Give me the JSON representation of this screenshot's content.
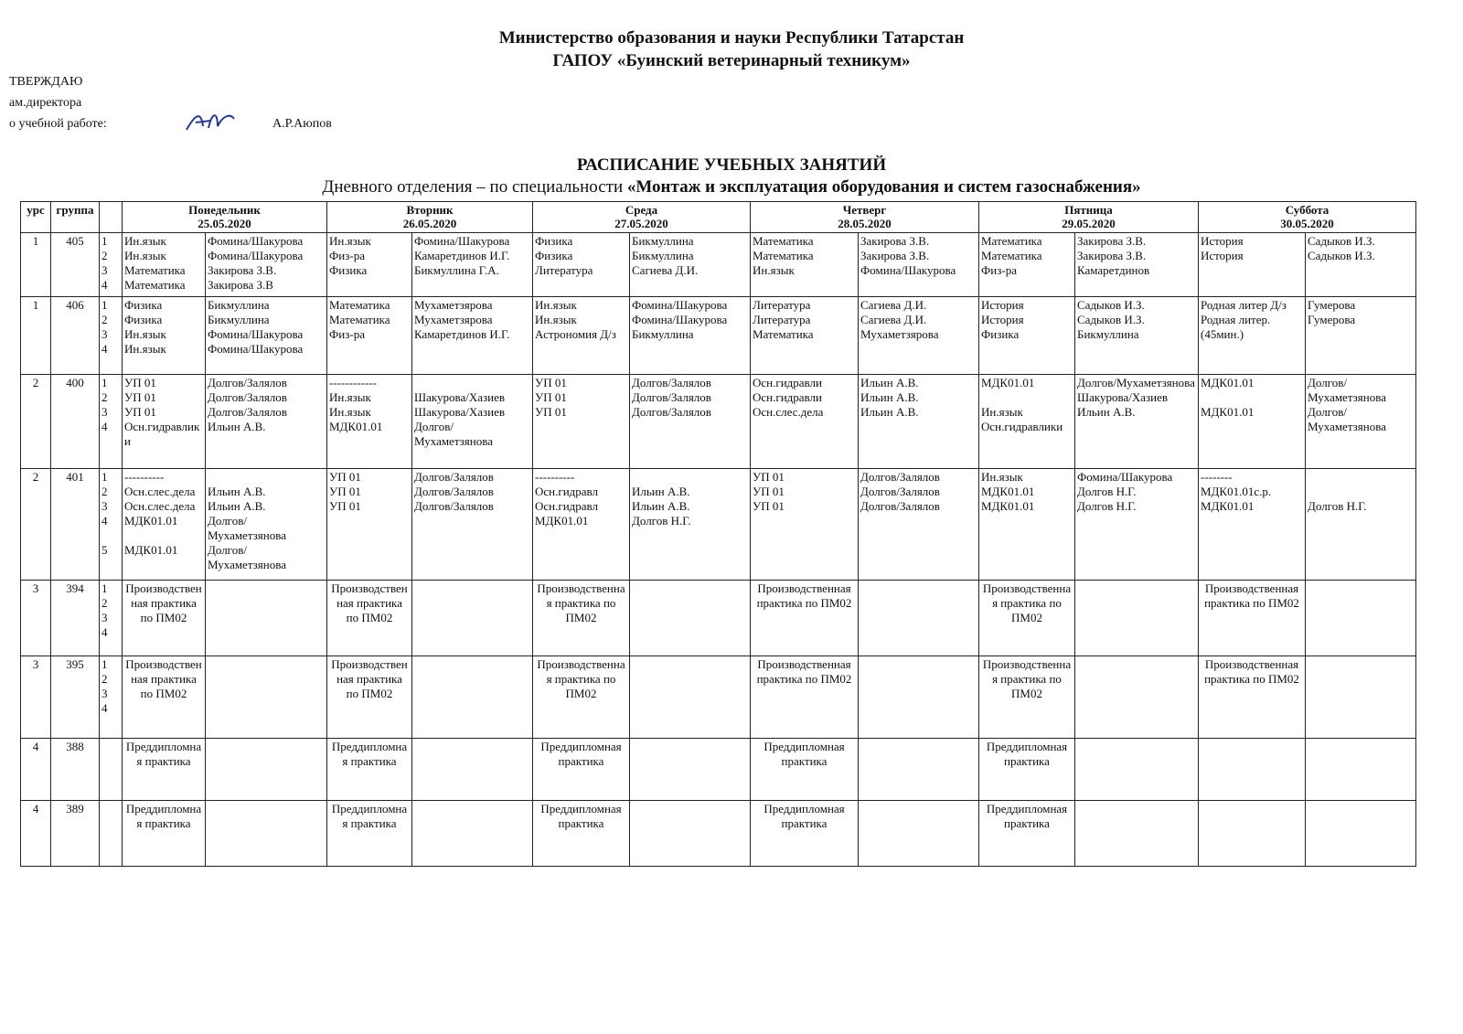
{
  "header": {
    "ministry": "Министерство образования и науки Республики Татарстан",
    "college": "ГАПОУ «Буинский ветеринарный техникум»"
  },
  "approval": {
    "title": "ТВЕРЖДАЮ",
    "position": "ам.директора",
    "area": "о учебной  работе:",
    "name": "А.Р.Аюпов"
  },
  "schedule_title": {
    "title": "РАСПИСАНИЕ УЧЕБНЫХ ЗАНЯТИЙ",
    "subtitle_prefix": "Дневного отделения – по специальности ",
    "specialty": "«Монтаж и эксплуатация оборудования и систем газоснабжения»"
  },
  "table": {
    "columns": {
      "course": "урс",
      "group": "группа"
    },
    "days": [
      {
        "name": "Понедельник",
        "date": "25.05.2020"
      },
      {
        "name": "Вторник",
        "date": "26.05.2020"
      },
      {
        "name": "Среда",
        "date": "27.05.2020"
      },
      {
        "name": "Четверг",
        "date": "28.05.2020"
      },
      {
        "name": "Пятница",
        "date": "29.05.2020"
      },
      {
        "name": "Суббота",
        "date": "30.05.2020"
      }
    ],
    "rows": [
      {
        "course": "1",
        "group": "405",
        "pairs": "1\n2\n3\n4",
        "lessons": [
          {
            "subject": "Ин.язык\nИн.язык\nМатематика\nМатематика",
            "teacher": "Фомина/Шакурова\nФомина/Шакурова\nЗакирова З.В.\nЗакирова З.В"
          },
          {
            "subject": "Ин.язык\nФиз-ра\nФизика",
            "teacher": "Фомина/Шакурова\nКамаретдинов И.Г.\nБикмуллина Г.А."
          },
          {
            "subject": "Физика\nФизика\nЛитература",
            "teacher": "Бикмуллина\nБикмуллина\nСагиева Д.И."
          },
          {
            "subject": "Математика\nМатематика\nИн.язык",
            "teacher": "Закирова З.В.\nЗакирова З.В.\nФомина/Шакурова"
          },
          {
            "subject": "Математика\nМатематика\nФиз-ра",
            "teacher": "Закирова З.В.\nЗакирова З.В.\nКамаретдинов"
          },
          {
            "subject": "История\nИстория",
            "teacher": "Садыков И.З.\nСадыков И.З."
          }
        ]
      },
      {
        "course": "1",
        "group": "406",
        "pairs": "1\n2\n3\n4",
        "lessons": [
          {
            "subject": "Физика\nФизика\nИн.язык\nИн.язык",
            "teacher": "Бикмуллина\nБикмуллина\nФомина/Шакурова\nФомина/Шакурова"
          },
          {
            "subject": "Математика\nМатематика\nФиз-ра",
            "teacher": "Мухаметзярова\nМухаметзярова\nКамаретдинов И.Г."
          },
          {
            "subject": "Ин.язык\nИн.язык\nАстрономия Д/з",
            "teacher": "Фомина/Шакурова\nФомина/Шакурова\nБикмуллина"
          },
          {
            "subject": "Литература\nЛитература\nМатематика",
            "teacher": "Сагиева Д.И.\nСагиева Д.И.\nМухаметзярова"
          },
          {
            "subject": "История\nИстория\nФизика",
            "teacher": "Садыков И.З.\nСадыков И.З.\nБикмуллина"
          },
          {
            "subject": "Родная литер  Д/з\nРодная литер.\n(45мин.)",
            "teacher": "Гумерова\nГумерова"
          }
        ]
      },
      {
        "course": "2",
        "group": "400",
        "pairs": "1\n2\n3\n4",
        "lessons": [
          {
            "subject": "УП 01\nУП 01\nУП 01\nОсн.гидравлики",
            "teacher": "Долгов/Залялов\nДолгов/Залялов\nДолгов/Залялов\nИльин А.В."
          },
          {
            "subject": "------------\nИн.язык\nИн.язык\nМДК01.01",
            "teacher": "\nШакурова/Хазиев\nШакурова/Хазиев\nДолгов/Мухаметзянова"
          },
          {
            "subject": "УП 01\nУП 01\nУП 01",
            "teacher": "Долгов/Залялов\nДолгов/Залялов\nДолгов/Залялов"
          },
          {
            "subject": "Осн.гидравли\nОсн.гидравли\nОсн.слес.дела",
            "teacher": "Ильин А.В.\nИльин А.В.\nИльин А.В."
          },
          {
            "subject": "МДК01.01\n\nИн.язык\nОсн.гидравлики",
            "teacher": "Долгов/Мухаметзянова\nШакурова/Хазиев\nИльин А.В."
          },
          {
            "subject": "МДК01.01\n\nМДК01.01",
            "teacher": "Долгов/Мухаметзянова\nДолгов/Мухаметзянова"
          }
        ]
      },
      {
        "course": "2",
        "group": "401",
        "pairs": "1\n2\n3\n4\n\n5",
        "lessons": [
          {
            "subject": "----------\nОсн.слес.дела\nОсн.слес.дела\nМДК01.01\n\nМДК01.01",
            "teacher": "\nИльин А.В.\nИльин А.В.\nДолгов/Мухаметзянова\nДолгов/Мухаметзянова"
          },
          {
            "subject": "УП 01\nУП 01\nУП 01",
            "teacher": "Долгов/Залялов\nДолгов/Залялов\nДолгов/Залялов"
          },
          {
            "subject": "----------\nОсн.гидравл\nОсн.гидравл\nМДК01.01",
            "teacher": "\nИльин А.В.\nИльин А.В.\nДолгов Н.Г."
          },
          {
            "subject": "УП 01\nУП 01\nУП 01",
            "teacher": "Долгов/Залялов\nДолгов/Залялов\nДолгов/Залялов"
          },
          {
            "subject": "Ин.язык\nМДК01.01\nМДК01.01",
            "teacher": "Фомина/Шакурова\nДолгов Н.Г.\nДолгов Н.Г."
          },
          {
            "subject": "--------\nМДК01.01с.р.\nМДК01.01",
            "teacher": "\n\nДолгов Н.Г."
          }
        ]
      },
      {
        "course": "3",
        "group": "394",
        "pairs": "1\n2\n3\n4",
        "lessons": [
          {
            "practice": "Производственная практика по ПМ02"
          },
          {
            "practice": "Производственная практика по ПМ02"
          },
          {
            "practice": "Производственная практика по ПМ02"
          },
          {
            "practice": "Производственная практика по ПМ02"
          },
          {
            "practice": "Производственная практика по ПМ02"
          },
          {
            "practice": "Производственная практика по ПМ02"
          }
        ]
      },
      {
        "course": "3",
        "group": "395",
        "pairs": "1\n2\n3\n4",
        "lessons": [
          {
            "practice": "Производственная практика по ПМ02"
          },
          {
            "practice": "Производственная практика по ПМ02"
          },
          {
            "practice": "Производственная практика по ПМ02"
          },
          {
            "practice": "Производственная практика по ПМ02"
          },
          {
            "practice": "Производственная практика по ПМ02"
          },
          {
            "practice": "Производственная практика по ПМ02"
          }
        ]
      },
      {
        "course": "4",
        "group": "388",
        "lessons": [
          {
            "practice": "Преддипломная практика"
          },
          {
            "practice": "Преддипломная практика"
          },
          {
            "practice": "Преддипломная практика"
          },
          {
            "practice": "Преддипломная практика"
          },
          {
            "practice": "Преддипломная практика"
          }
        ]
      },
      {
        "course": "4",
        "group": "389",
        "lessons": [
          {
            "practice": "Преддипломная практика"
          },
          {
            "practice": "Преддипломная практика"
          },
          {
            "practice": "Преддипломная практика"
          },
          {
            "practice": "Преддипломная практика"
          },
          {
            "practice": "Преддипломная практика"
          }
        ]
      }
    ]
  }
}
